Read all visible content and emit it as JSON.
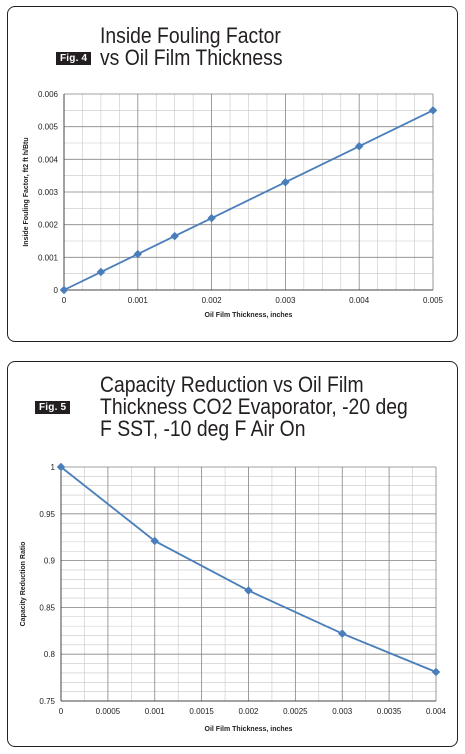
{
  "figures": [
    {
      "badge": "Fig. 4",
      "title_lines": [
        "Inside Fouling Factor",
        "vs Oil Film Thickness"
      ]
    },
    {
      "badge": "Fig. 5",
      "title_lines": [
        "Capacity Reduction vs Oil Film",
        "Thickness CO2 Evaporator, -20 deg",
        "F SST, -10 deg F Air On"
      ]
    }
  ],
  "chart_data": [
    {
      "type": "line",
      "title": "Inside Fouling Factor vs Oil Film Thickness",
      "xlabel": "Oil Film Thickness, inches",
      "ylabel": "Inside Fouling Factor, ft2 ft h/Btu",
      "xlim": [
        0,
        0.005
      ],
      "ylim": [
        0,
        0.006
      ],
      "x_ticks": [
        "0",
        "0.001",
        "0.002",
        "0.003",
        "0.004",
        "0.005"
      ],
      "y_ticks": [
        "0",
        "0.001",
        "0.002",
        "0.003",
        "0.004",
        "0.005",
        "0.006"
      ],
      "grid": true,
      "color": "#4a7ebb",
      "series": [
        {
          "x": [
            0,
            0.0005,
            0.001,
            0.0015,
            0.002,
            0.003,
            0.004,
            0.005
          ],
          "y": [
            0,
            0.00055,
            0.0011,
            0.00165,
            0.0022,
            0.0033,
            0.0044,
            0.0055
          ]
        }
      ]
    },
    {
      "type": "line",
      "title": "Capacity Reduction vs Oil Film Thickness CO2 Evaporator, -20 deg F SST, -10 deg F Air On",
      "xlabel": "Oil Film Thickness, inches",
      "ylabel": "Capacity Reduction Ratio",
      "xlim": [
        0,
        0.004
      ],
      "ylim": [
        0.75,
        1
      ],
      "x_ticks": [
        "0",
        "0.0005",
        "0.001",
        "0.0015",
        "0.002",
        "0.0025",
        "0.003",
        "0.0035",
        "0.004"
      ],
      "y_ticks": [
        "0.75",
        "0.8",
        "0.85",
        "0.9",
        "0.95",
        "1"
      ],
      "grid": true,
      "color": "#4a7ebb",
      "series": [
        {
          "x": [
            0,
            0.001,
            0.002,
            0.003,
            0.004
          ],
          "y": [
            1.0,
            0.921,
            0.868,
            0.822,
            0.781
          ]
        }
      ]
    }
  ]
}
